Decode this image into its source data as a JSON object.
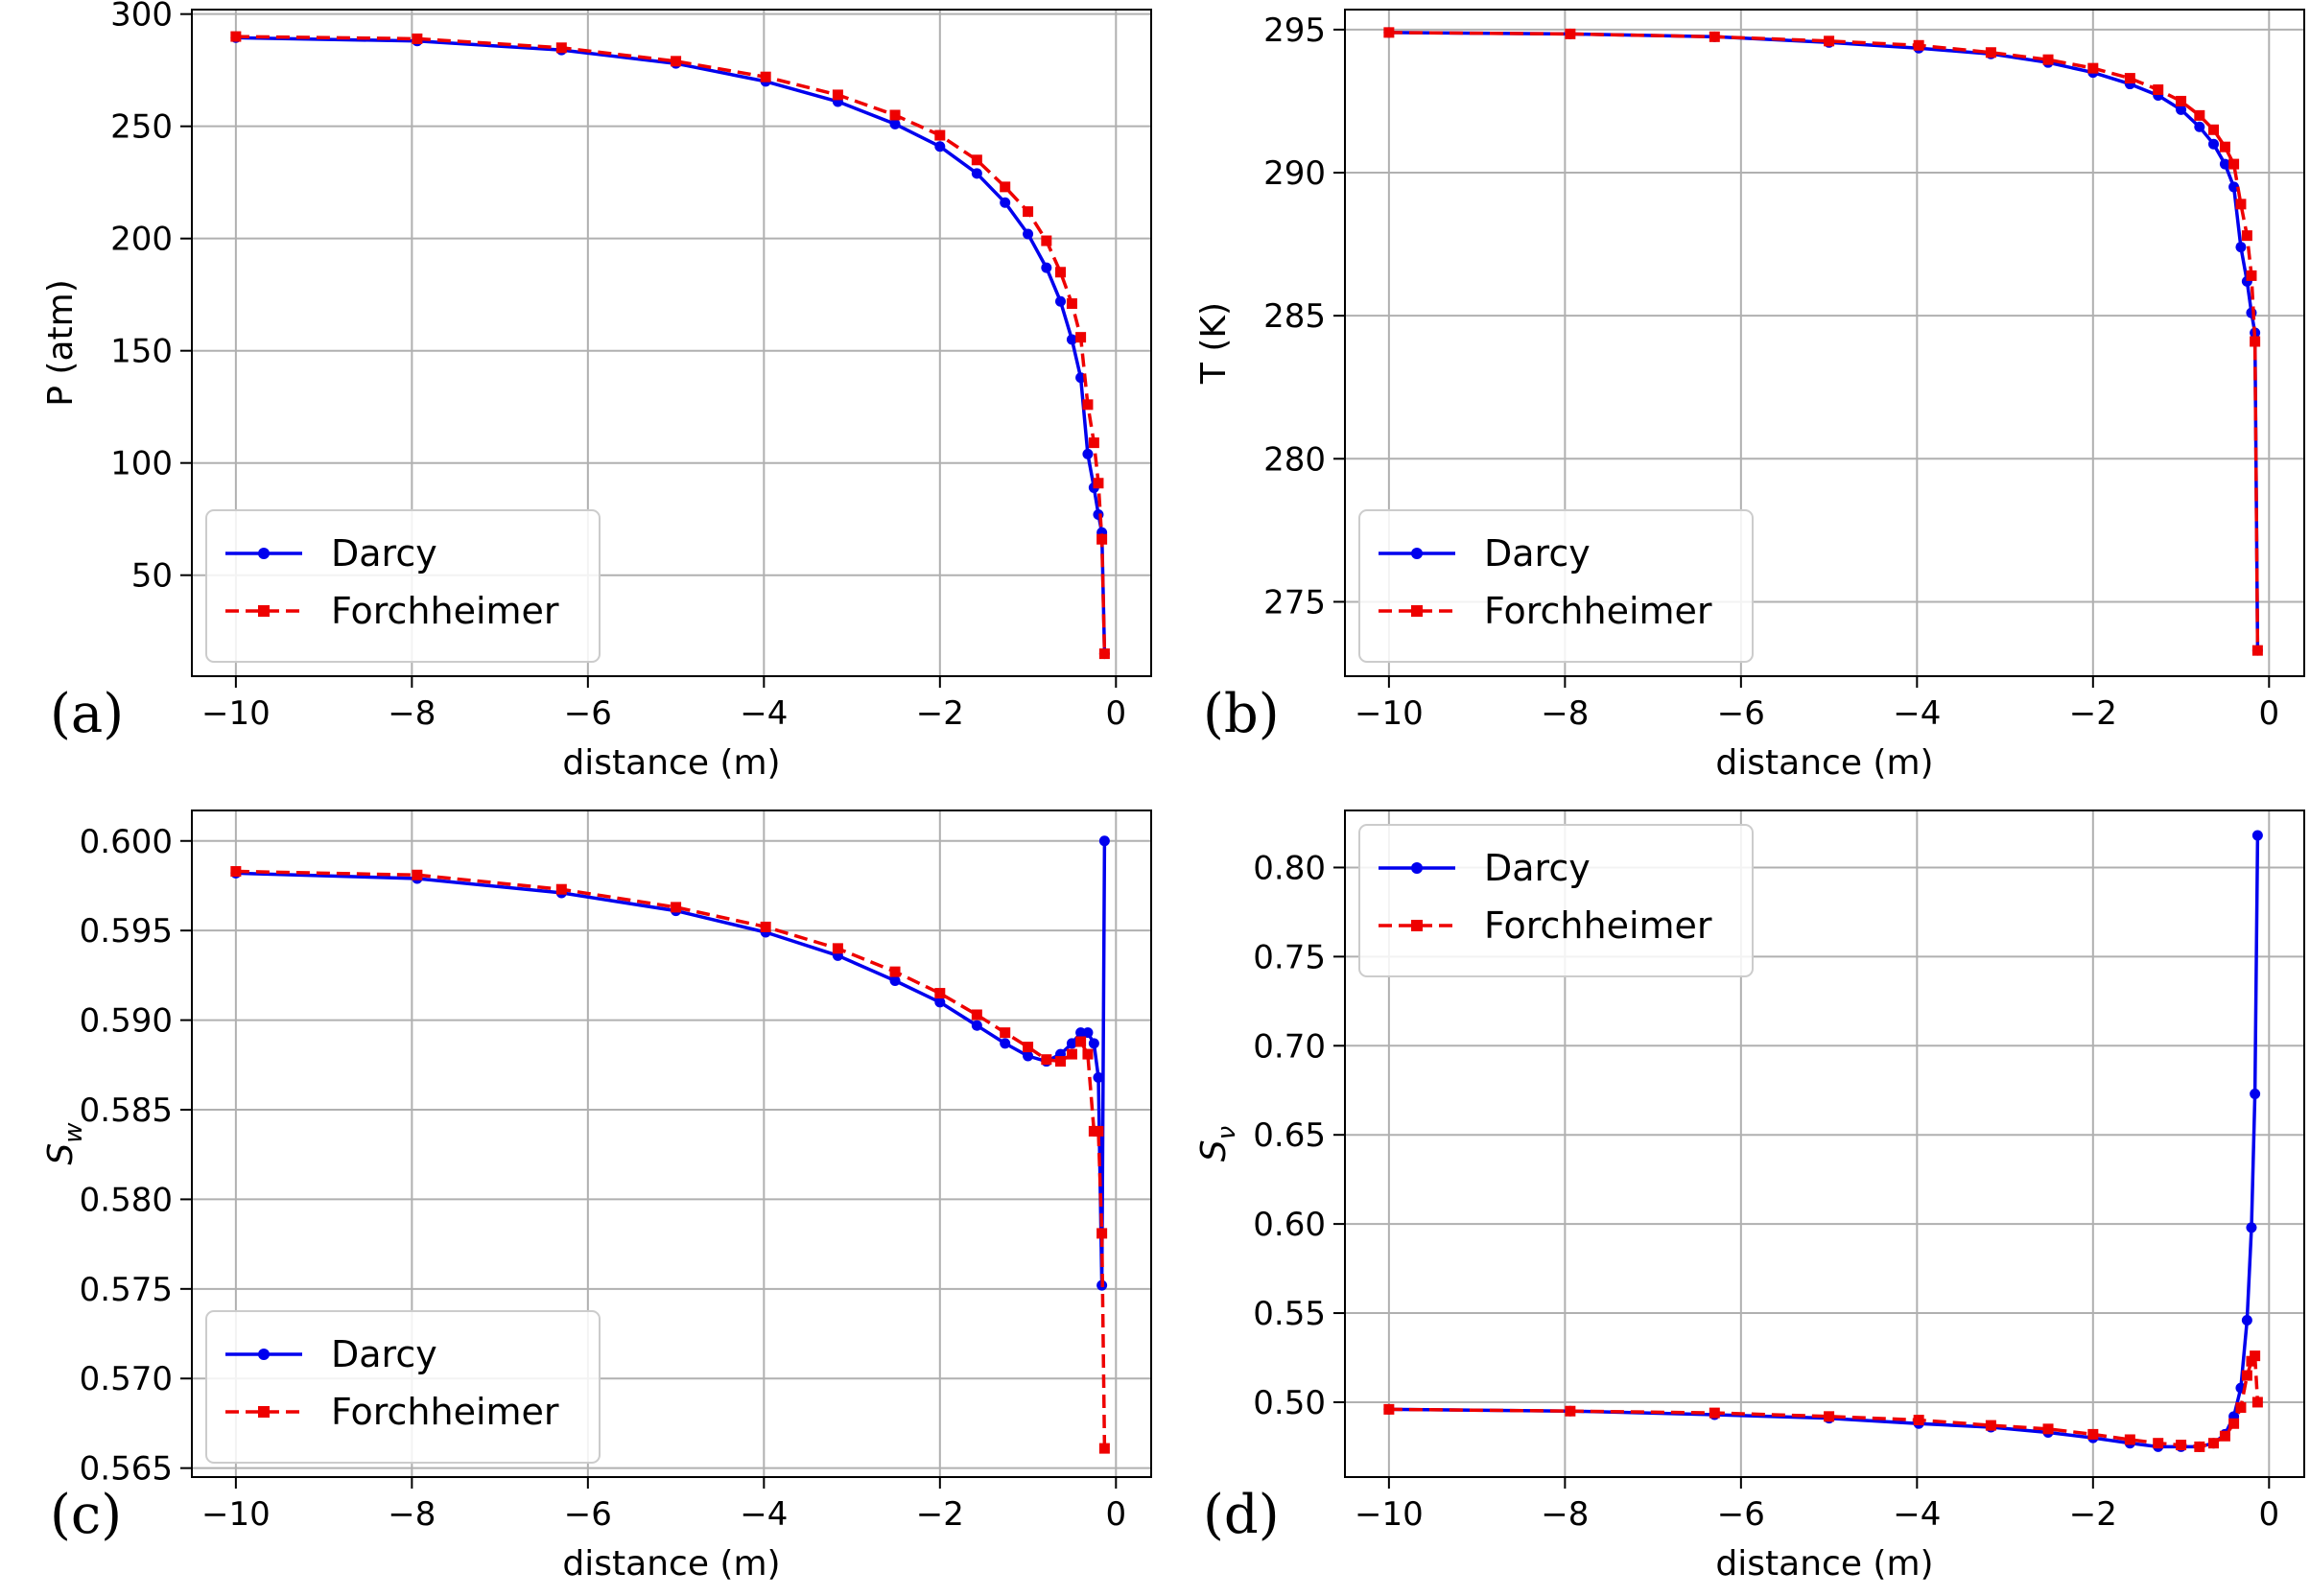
{
  "colors": {
    "darcy": "#0000ee",
    "forchheimer": "#ee0000"
  },
  "chart_data": [
    {
      "type": "line",
      "panel_label": "(a)",
      "xlabel": "distance (m)",
      "ylabel": "P (atm)",
      "ylabel_sub": "",
      "xlim": [
        -10.5,
        0.4
      ],
      "ylim": [
        5,
        302
      ],
      "xticks": [
        -10,
        -8,
        -6,
        -4,
        -2,
        0
      ],
      "xtick_labels": [
        "−10",
        "−8",
        "−6",
        "−4",
        "−2",
        "0"
      ],
      "yticks": [
        50,
        100,
        150,
        200,
        250,
        300
      ],
      "ytick_labels": [
        "50",
        "100",
        "150",
        "200",
        "250",
        "300"
      ],
      "legend_position": "lower-left",
      "series": [
        {
          "name": "Darcy",
          "x": [
            -10,
            -7.94,
            -6.3,
            -5.0,
            -3.98,
            -3.16,
            -2.51,
            -2.0,
            -1.58,
            -1.26,
            -1.0,
            -0.79,
            -0.63,
            -0.5,
            -0.4,
            -0.32,
            -0.25,
            -0.2,
            -0.16,
            -0.13
          ],
          "y": [
            289.5,
            288,
            284,
            278,
            270,
            261,
            251,
            241,
            229,
            216,
            202,
            187,
            172,
            155,
            138,
            104,
            89,
            77,
            69,
            15
          ]
        },
        {
          "name": "Forchheimer",
          "x": [
            -10,
            -7.94,
            -6.3,
            -5.0,
            -3.98,
            -3.16,
            -2.51,
            -2.0,
            -1.58,
            -1.26,
            -1.0,
            -0.79,
            -0.63,
            -0.5,
            -0.4,
            -0.32,
            -0.25,
            -0.2,
            -0.16,
            -0.13
          ],
          "y": [
            290,
            289,
            285,
            279,
            272,
            264,
            255,
            246,
            235,
            223,
            212,
            199,
            185,
            171,
            156,
            126,
            109,
            91,
            66,
            15
          ]
        }
      ]
    },
    {
      "type": "line",
      "panel_label": "(b)",
      "xlabel": "distance (m)",
      "ylabel": "T (K)",
      "ylabel_sub": "",
      "xlim": [
        -10.5,
        0.4
      ],
      "ylim": [
        272.4,
        295.7
      ],
      "xticks": [
        -10,
        -8,
        -6,
        -4,
        -2,
        0
      ],
      "xtick_labels": [
        "−10",
        "−8",
        "−6",
        "−4",
        "−2",
        "0"
      ],
      "yticks": [
        275,
        280,
        285,
        290,
        295
      ],
      "ytick_labels": [
        "275",
        "280",
        "285",
        "290",
        "295"
      ],
      "legend_position": "lower-left",
      "series": [
        {
          "name": "Darcy",
          "x": [
            -10,
            -7.94,
            -6.3,
            -5.0,
            -3.98,
            -3.16,
            -2.51,
            -2.0,
            -1.58,
            -1.26,
            -1.0,
            -0.79,
            -0.63,
            -0.5,
            -0.4,
            -0.32,
            -0.25,
            -0.2,
            -0.16,
            -0.13
          ],
          "y": [
            294.9,
            294.85,
            294.75,
            294.55,
            294.35,
            294.15,
            293.85,
            293.5,
            293.1,
            292.7,
            292.2,
            291.6,
            291.0,
            290.3,
            289.5,
            287.4,
            286.2,
            285.1,
            284.4,
            273.3
          ]
        },
        {
          "name": "Forchheimer",
          "x": [
            -10,
            -7.94,
            -6.3,
            -5.0,
            -3.98,
            -3.16,
            -2.51,
            -2.0,
            -1.58,
            -1.26,
            -1.0,
            -0.79,
            -0.63,
            -0.5,
            -0.4,
            -0.32,
            -0.25,
            -0.2,
            -0.16,
            -0.13
          ],
          "y": [
            294.9,
            294.85,
            294.75,
            294.6,
            294.45,
            294.2,
            293.95,
            293.65,
            293.3,
            292.9,
            292.5,
            292.0,
            291.5,
            290.9,
            290.3,
            288.9,
            287.8,
            286.4,
            284.1,
            273.3
          ]
        }
      ]
    },
    {
      "type": "line",
      "panel_label": "(c)",
      "xlabel": "distance (m)",
      "ylabel": "S",
      "ylabel_sub": "w",
      "xlim": [
        -10.5,
        0.4
      ],
      "ylim": [
        0.5645,
        0.6017
      ],
      "xticks": [
        -10,
        -8,
        -6,
        -4,
        -2,
        0
      ],
      "xtick_labels": [
        "−10",
        "−8",
        "−6",
        "−4",
        "−2",
        "0"
      ],
      "yticks": [
        0.565,
        0.57,
        0.575,
        0.58,
        0.585,
        0.59,
        0.595,
        0.6
      ],
      "ytick_labels": [
        "0.565",
        "0.570",
        "0.575",
        "0.580",
        "0.585",
        "0.590",
        "0.595",
        "0.600"
      ],
      "legend_position": "lower-left",
      "series": [
        {
          "name": "Darcy",
          "x": [
            -10,
            -7.94,
            -6.3,
            -5.0,
            -3.98,
            -3.16,
            -2.51,
            -2.0,
            -1.58,
            -1.26,
            -1.0,
            -0.79,
            -0.63,
            -0.5,
            -0.4,
            -0.32,
            -0.25,
            -0.2,
            -0.16,
            -0.13
          ],
          "y": [
            0.5982,
            0.5979,
            0.5971,
            0.5961,
            0.5949,
            0.5936,
            0.5922,
            0.591,
            0.5897,
            0.5887,
            0.588,
            0.5877,
            0.5881,
            0.5887,
            0.5893,
            0.5893,
            0.5887,
            0.5868,
            0.5752,
            0.6
          ]
        },
        {
          "name": "Forchheimer",
          "x": [
            -10,
            -7.94,
            -6.3,
            -5.0,
            -3.98,
            -3.16,
            -2.51,
            -2.0,
            -1.58,
            -1.26,
            -1.0,
            -0.79,
            -0.63,
            -0.5,
            -0.4,
            -0.32,
            -0.25,
            -0.2,
            -0.16,
            -0.13
          ],
          "y": [
            0.5983,
            0.5981,
            0.5973,
            0.5963,
            0.5952,
            0.594,
            0.5927,
            0.5915,
            0.5903,
            0.5893,
            0.5885,
            0.5878,
            0.5877,
            0.5881,
            0.5888,
            0.5881,
            0.5838,
            0.5838,
            0.5781,
            0.5661
          ]
        }
      ]
    },
    {
      "type": "line",
      "panel_label": "(d)",
      "xlabel": "distance (m)",
      "ylabel": "S",
      "ylabel_sub": "ν",
      "xlim": [
        -10.5,
        0.4
      ],
      "ylim": [
        0.458,
        0.832
      ],
      "xticks": [
        -10,
        -8,
        -6,
        -4,
        -2,
        0
      ],
      "xtick_labels": [
        "−10",
        "−8",
        "−6",
        "−4",
        "−2",
        "0"
      ],
      "yticks": [
        0.5,
        0.55,
        0.6,
        0.65,
        0.7,
        0.75,
        0.8
      ],
      "ytick_labels": [
        "0.50",
        "0.55",
        "0.60",
        "0.65",
        "0.70",
        "0.75",
        "0.80"
      ],
      "legend_position": "upper-left",
      "series": [
        {
          "name": "Darcy",
          "x": [
            -10,
            -7.94,
            -6.3,
            -5.0,
            -3.98,
            -3.16,
            -2.51,
            -2.0,
            -1.58,
            -1.26,
            -1.0,
            -0.79,
            -0.63,
            -0.5,
            -0.4,
            -0.32,
            -0.25,
            -0.2,
            -0.16,
            -0.13
          ],
          "y": [
            0.496,
            0.495,
            0.493,
            0.491,
            0.488,
            0.486,
            0.483,
            0.48,
            0.477,
            0.475,
            0.475,
            0.475,
            0.477,
            0.482,
            0.492,
            0.508,
            0.546,
            0.598,
            0.673,
            0.818
          ]
        },
        {
          "name": "Forchheimer",
          "x": [
            -10,
            -7.94,
            -6.3,
            -5.0,
            -3.98,
            -3.16,
            -2.51,
            -2.0,
            -1.58,
            -1.26,
            -1.0,
            -0.79,
            -0.63,
            -0.5,
            -0.4,
            -0.32,
            -0.25,
            -0.2,
            -0.16,
            -0.13
          ],
          "y": [
            0.496,
            0.495,
            0.494,
            0.492,
            0.49,
            0.487,
            0.485,
            0.482,
            0.479,
            0.477,
            0.476,
            0.475,
            0.477,
            0.481,
            0.488,
            0.497,
            0.515,
            0.523,
            0.526,
            0.5
          ]
        }
      ]
    }
  ]
}
